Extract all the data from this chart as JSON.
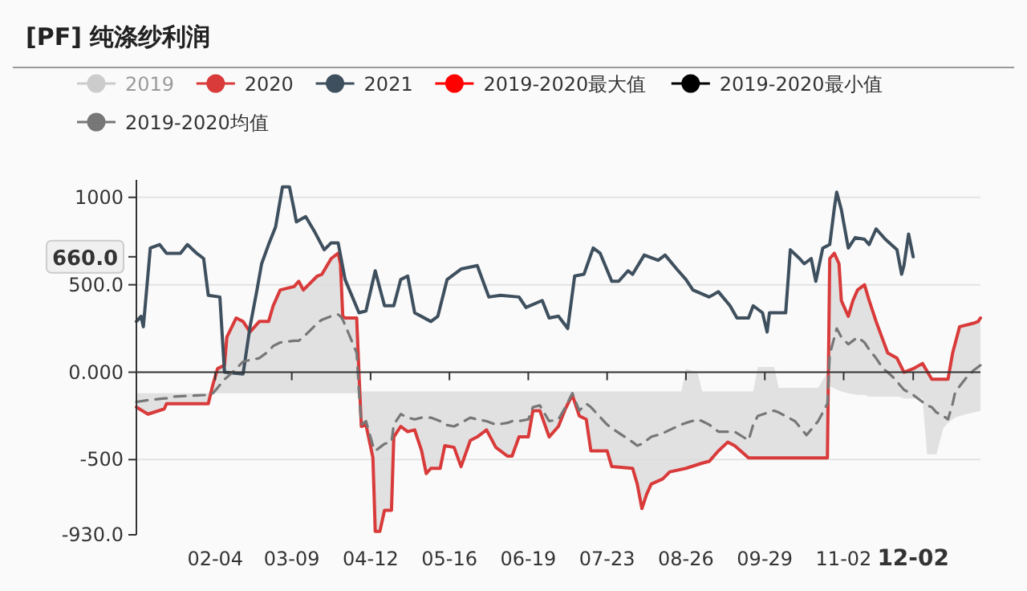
{
  "chart_data": {
    "type": "line",
    "title": "[PF] 纯涤纱利润",
    "xlim": [
      "--01-01",
      "--12-31"
    ],
    "xticks": [
      {
        "value": "--02-04",
        "label": "02-04"
      },
      {
        "value": "--03-09",
        "label": "03-09"
      },
      {
        "value": "--04-12",
        "label": "04-12"
      },
      {
        "value": "--05-16",
        "label": "05-16"
      },
      {
        "value": "--06-19",
        "label": "06-19"
      },
      {
        "value": "--07-23",
        "label": "07-23"
      },
      {
        "value": "--08-26",
        "label": "08-26"
      },
      {
        "value": "--09-29",
        "label": "09-29"
      },
      {
        "value": "--11-02",
        "label": "11-02"
      },
      {
        "value": "--12-02",
        "label": "12-02"
      }
    ],
    "ylim": [
      -930,
      1100
    ],
    "yticks": [
      1000,
      {
        "value": 660,
        "label": "660.0"
      },
      {
        "value": 500,
        "label": "500.0"
      },
      {
        "value": 0,
        "label": "0.000"
      },
      -500,
      {
        "value": -930,
        "label": "-930.0"
      }
    ],
    "grid": "y",
    "legend": "top",
    "series": [
      {
        "name": "2019",
        "color": "#cccccc"
      },
      {
        "name": "2020",
        "color": "#d93a3a",
        "x": [
          "--01-01",
          "--01-06",
          "--01-13",
          "--01-14",
          "--02-01",
          "--02-03",
          "--02-05",
          "--02-08",
          "--02-09",
          "--02-13",
          "--02-16",
          "--02-19",
          "--02-23",
          "--02-27",
          "--03-01",
          "--03-04",
          "--03-10",
          "--03-12",
          "--03-14",
          "--03-20",
          "--03-22",
          "--03-26",
          "--03-29",
          "--03-30",
          "--03-31",
          "--04-01",
          "--04-06",
          "--04-07",
          "--04-08",
          "--04-10",
          "--04-13",
          "--04-14",
          "--04-16",
          "--04-18",
          "--04-21",
          "--04-22",
          "--04-25",
          "--04-28",
          "--05-01",
          "--05-04",
          "--05-06",
          "--05-08",
          "--05-12",
          "--05-14",
          "--05-18",
          "--05-21",
          "--05-25",
          "--05-28",
          "--06-01",
          "--06-05",
          "--06-10",
          "--06-12",
          "--06-15",
          "--06-19",
          "--06-21",
          "--06-24",
          "--06-28",
          "--07-02",
          "--07-05",
          "--07-08",
          "--07-11",
          "--07-14",
          "--07-16",
          "--07-23",
          "--07-25",
          "--08-03",
          "--08-05",
          "--08-07",
          "--08-09",
          "--08-11",
          "--08-16",
          "--08-19",
          "--08-26",
          "--09-02",
          "--09-05",
          "--09-09",
          "--09-13",
          "--09-16",
          "--09-22",
          "--10-26",
          "--10-27",
          "--10-29",
          "--10-31",
          "--11-01",
          "--11-04",
          "--11-06",
          "--11-08",
          "--11-11",
          "--11-13",
          "--11-16",
          "--11-21",
          "--11-25",
          "--11-28",
          "--12-02",
          "--12-06",
          "--12-10",
          "--12-17",
          "--12-19",
          "--12-22",
          "--12-28",
          "--12-30",
          "--12-31"
        ],
        "values": [
          -200,
          -240,
          -210,
          -180,
          -180,
          -70,
          20,
          40,
          200,
          310,
          290,
          230,
          290,
          290,
          380,
          470,
          490,
          520,
          470,
          550,
          560,
          650,
          680,
          620,
          320,
          310,
          310,
          -10,
          -310,
          -300,
          -490,
          -910,
          -910,
          -790,
          -790,
          -370,
          -310,
          -340,
          -330,
          -450,
          -580,
          -550,
          -550,
          -420,
          -430,
          -540,
          -390,
          -370,
          -330,
          -430,
          -480,
          -480,
          -370,
          -370,
          -220,
          -220,
          -370,
          -310,
          -210,
          -130,
          -250,
          -270,
          -450,
          -450,
          -540,
          -550,
          -640,
          -780,
          -700,
          -640,
          -610,
          -570,
          -550,
          -520,
          -510,
          -450,
          -400,
          -420,
          -490,
          -490,
          650,
          680,
          620,
          410,
          320,
          410,
          470,
          500,
          410,
          290,
          110,
          80,
          0,
          20,
          50,
          -40,
          -40,
          110,
          260,
          280,
          290,
          310
        ]
      },
      {
        "name": "2021",
        "color": "#3e4f5e",
        "x": [
          "--01-01",
          "--01-03",
          "--01-04",
          "--01-07",
          "--01-11",
          "--01-14",
          "--01-20",
          "--01-23",
          "--01-27",
          "--01-30",
          "--02-01",
          "--02-06",
          "--02-08",
          "--02-16",
          "--02-19",
          "--02-22",
          "--02-24",
          "--02-27",
          "--03-02",
          "--03-05",
          "--03-08",
          "--03-10",
          "--03-11",
          "--03-15",
          "--03-19",
          "--03-23",
          "--03-26",
          "--03-29",
          "--04-01",
          "--04-07",
          "--04-10",
          "--04-14",
          "--04-18",
          "--04-22",
          "--04-25",
          "--04-28",
          "--05-01",
          "--05-08",
          "--05-11",
          "--05-15",
          "--05-21",
          "--05-28",
          "--06-02",
          "--06-07",
          "--06-15",
          "--06-18",
          "--06-25",
          "--06-28",
          "--07-02",
          "--07-06",
          "--07-09",
          "--07-13",
          "--07-17",
          "--07-20",
          "--07-25",
          "--07-28",
          "--08-01",
          "--08-03",
          "--08-08",
          "--08-14",
          "--08-17",
          "--08-22",
          "--08-26",
          "--08-29",
          "--09-05",
          "--09-09",
          "--09-14",
          "--09-17",
          "--09-22",
          "--09-24",
          "--09-28",
          "--09-30",
          "--10-01",
          "--10-08",
          "--10-10",
          "--10-14",
          "--10-16",
          "--10-19",
          "--10-21",
          "--10-24",
          "--10-27",
          "--10-29",
          "--10-30",
          "--11-01",
          "--11-04",
          "--11-07",
          "--11-11",
          "--11-13",
          "--11-16",
          "--11-20",
          "--11-25",
          "--11-27",
          "--11-28",
          "--11-30",
          "--12-02"
        ],
        "values": [
          290,
          320,
          260,
          710,
          730,
          680,
          680,
          730,
          680,
          650,
          440,
          430,
          0,
          -10,
          260,
          470,
          620,
          730,
          830,
          1060,
          1060,
          930,
          860,
          890,
          800,
          700,
          740,
          740,
          530,
          340,
          350,
          580,
          380,
          380,
          530,
          550,
          340,
          290,
          320,
          530,
          590,
          610,
          430,
          440,
          430,
          370,
          410,
          310,
          320,
          250,
          550,
          560,
          710,
          680,
          520,
          520,
          580,
          560,
          670,
          640,
          670,
          590,
          530,
          470,
          430,
          460,
          380,
          310,
          310,
          380,
          340,
          230,
          340,
          340,
          700,
          650,
          620,
          650,
          520,
          710,
          730,
          940,
          1030,
          930,
          710,
          770,
          760,
          730,
          820,
          760,
          700,
          560,
          610,
          790,
          660
        ]
      },
      {
        "name": "2019-2020最大值",
        "color": "#ff0000"
      },
      {
        "name": "2019-2020最小值",
        "color": "#000000"
      },
      {
        "name": "2019-2020均值",
        "color": "#777777",
        "line_style": "dashed",
        "x": [
          "--01-01",
          "--01-06",
          "--01-13",
          "--01-14",
          "--01-16",
          "--02-01",
          "--02-03",
          "--02-05",
          "--02-08",
          "--02-09",
          "--02-13",
          "--02-16",
          "--02-19",
          "--02-23",
          "--02-27",
          "--03-01",
          "--03-04",
          "--03-10",
          "--03-12",
          "--03-14",
          "--03-20",
          "--03-22",
          "--03-26",
          "--03-29",
          "--03-30",
          "--03-31",
          "--04-01",
          "--04-06",
          "--04-07",
          "--04-08",
          "--04-10",
          "--04-13",
          "--04-14",
          "--04-16",
          "--04-18",
          "--04-21",
          "--04-22",
          "--04-25",
          "--04-28",
          "--05-01",
          "--05-04",
          "--05-06",
          "--05-08",
          "--05-12",
          "--05-14",
          "--05-18",
          "--05-21",
          "--05-25",
          "--05-28",
          "--06-01",
          "--06-05",
          "--06-10",
          "--06-12",
          "--06-15",
          "--06-19",
          "--06-21",
          "--06-24",
          "--06-28",
          "--07-02",
          "--07-05",
          "--07-08",
          "--07-11",
          "--07-14",
          "--07-16",
          "--07-23",
          "--07-25",
          "--08-03",
          "--08-05",
          "--08-07",
          "--08-09",
          "--08-11",
          "--08-16",
          "--08-19",
          "--08-24",
          "--08-26",
          "--08-31",
          "--09-02",
          "--09-05",
          "--09-09",
          "--09-13",
          "--09-16",
          "--09-22",
          "--09-24",
          "--09-26",
          "--10-03",
          "--10-05",
          "--10-12",
          "--10-17",
          "--10-22",
          "--10-26",
          "--10-27",
          "--10-30",
          "--11-01",
          "--11-04",
          "--11-08",
          "--11-11",
          "--11-13",
          "--11-16",
          "--11-19",
          "--11-21",
          "--11-25",
          "--11-26",
          "--11-28",
          "--12-02",
          "--12-04",
          "--12-06",
          "--12-08",
          "--12-10",
          "--12-12",
          "--12-15",
          "--12-17",
          "--12-19",
          "--12-20",
          "--12-22",
          "--12-25",
          "--12-28",
          "--12-30",
          "--12-31"
        ],
        "values": [
          -170,
          -160,
          -150,
          -150,
          -140,
          -130,
          -120,
          -90,
          -40,
          -30,
          20,
          60,
          70,
          80,
          120,
          150,
          170,
          180,
          180,
          200,
          280,
          300,
          320,
          330,
          320,
          300,
          270,
          110,
          -115,
          -300,
          -280,
          -420,
          -450,
          -430,
          -410,
          -400,
          -300,
          -240,
          -260,
          -270,
          -260,
          -260,
          -260,
          -280,
          -300,
          -310,
          -290,
          -260,
          -270,
          -280,
          -300,
          -290,
          -280,
          -280,
          -270,
          -200,
          -190,
          -280,
          -270,
          -200,
          -120,
          -220,
          -180,
          -200,
          -300,
          -320,
          -400,
          -420,
          -410,
          -390,
          -370,
          -350,
          -330,
          -300,
          -290,
          -270,
          -280,
          -300,
          -340,
          -340,
          -340,
          -390,
          -300,
          -250,
          -220,
          -230,
          -280,
          -360,
          -280,
          -180,
          100,
          250,
          200,
          160,
          200,
          170,
          130,
          80,
          20,
          0,
          -50,
          -70,
          -100,
          -130,
          -150,
          -170,
          -190,
          -200,
          -230,
          -250,
          -270,
          -180,
          -120,
          -80,
          -30,
          10,
          30,
          40
        ],
        "lower": [
          -200,
          -240,
          -210,
          -180,
          -180,
          -180,
          -120,
          -120,
          -120,
          -120,
          -120,
          -120,
          -120,
          -120,
          -120,
          -120,
          -120,
          -120,
          -120,
          -120,
          -120,
          -120,
          -120,
          -120,
          -120,
          -120,
          -120,
          -120,
          -120,
          -310,
          -300,
          -490,
          -910,
          -910,
          -790,
          -790,
          -370,
          -310,
          -340,
          -330,
          -450,
          -580,
          -550,
          -550,
          -420,
          -430,
          -540,
          -390,
          -370,
          -330,
          -430,
          -480,
          -480,
          -370,
          -370,
          -220,
          -220,
          -370,
          -310,
          -210,
          -130,
          -250,
          -270,
          -450,
          -450,
          -540,
          -550,
          -640,
          -780,
          -700,
          -640,
          -610,
          -570,
          -560,
          -550,
          -530,
          -520,
          -510,
          -450,
          -400,
          -420,
          -490,
          -490,
          -490,
          -490,
          -490,
          -490,
          -490,
          -490,
          -490,
          -80,
          -100,
          -110,
          -120,
          -130,
          -130,
          -140,
          -140,
          -140,
          -140,
          -140,
          -140,
          -150,
          -150,
          -150,
          -150,
          -470,
          -470,
          -470,
          -320,
          -290,
          -270,
          -260,
          -250,
          -240,
          -230,
          -225,
          -220
        ],
        "upper": [
          -120,
          -120,
          -120,
          -120,
          -120,
          -120,
          -70,
          20,
          40,
          200,
          310,
          290,
          230,
          290,
          290,
          380,
          470,
          490,
          520,
          470,
          550,
          560,
          650,
          680,
          620,
          320,
          310,
          310,
          -110,
          -110,
          -110,
          -110,
          -110,
          -110,
          -110,
          -110,
          -110,
          -110,
          -110,
          -110,
          -110,
          -110,
          -110,
          -110,
          -110,
          -110,
          -110,
          -110,
          -110,
          -110,
          -110,
          -110,
          -110,
          -110,
          -110,
          -110,
          -110,
          -110,
          -110,
          -110,
          -110,
          -110,
          -110,
          -110,
          -110,
          -110,
          -110,
          -110,
          -110,
          -110,
          -110,
          -110,
          -110,
          -110,
          20,
          0,
          -110,
          -110,
          -110,
          -110,
          -110,
          -110,
          -110,
          30,
          30,
          -90,
          -90,
          -90,
          -90,
          0,
          650,
          660,
          410,
          320,
          470,
          500,
          410,
          290,
          160,
          110,
          80,
          60,
          0,
          20,
          30,
          50,
          20,
          -40,
          -40,
          -40,
          -40,
          110,
          180,
          260,
          270,
          280,
          290,
          310
        ]
      }
    ]
  }
}
